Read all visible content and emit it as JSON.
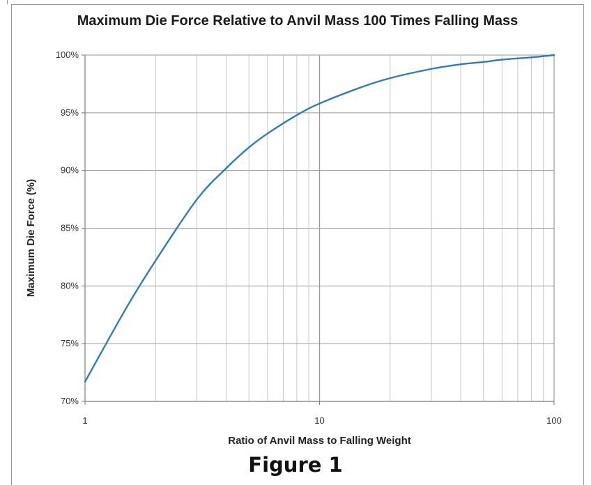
{
  "figure": {
    "caption": "Figure 1"
  },
  "chart_data": {
    "type": "line",
    "title": "Maximum Die Force Relative to Anvil Mass 100 Times Falling Mass",
    "xlabel": "Ratio of Anvil Mass to Falling Weight",
    "ylabel": "Maximum Die Force (%)",
    "x_scale": "log",
    "xlim": [
      1,
      100
    ],
    "ylim": [
      70,
      100
    ],
    "x_ticks": [
      {
        "value": 1,
        "label": "1"
      },
      {
        "value": 10,
        "label": "10"
      },
      {
        "value": 100,
        "label": "100"
      }
    ],
    "y_ticks": [
      {
        "value": 70,
        "label": "70%"
      },
      {
        "value": 75,
        "label": "75%"
      },
      {
        "value": 80,
        "label": "80%"
      },
      {
        "value": 85,
        "label": "85%"
      },
      {
        "value": 90,
        "label": "90%"
      },
      {
        "value": 95,
        "label": "95%"
      },
      {
        "value": 100,
        "label": "100%"
      }
    ],
    "grid": true,
    "line_color": "#2e7db5",
    "series": [
      {
        "x": [
          1,
          1.5,
          2,
          3,
          4,
          5,
          6,
          8,
          10,
          15,
          20,
          30,
          40,
          50,
          60,
          80,
          100
        ],
        "values": [
          71.7,
          78.1,
          82.2,
          87.5,
          90.2,
          92.0,
          93.2,
          94.8,
          95.8,
          97.2,
          98.0,
          98.8,
          99.2,
          99.4,
          99.6,
          99.8,
          100.0
        ]
      }
    ]
  }
}
